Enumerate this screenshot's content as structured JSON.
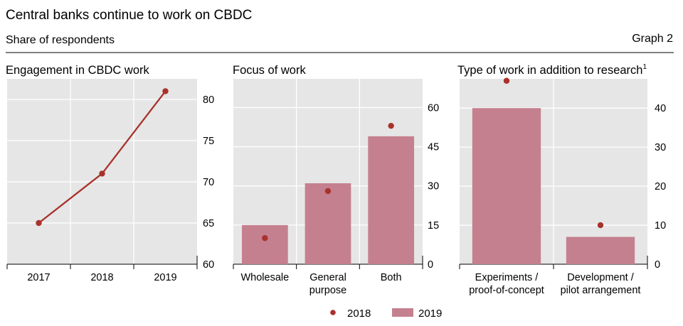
{
  "figure": {
    "title": "Central banks continue to work on CBDC",
    "subtitle": "Share of respondents",
    "graph_label": "Graph 2",
    "colors": {
      "panel_bg": "#e6e6e6",
      "grid": "#ffffff",
      "series_2018": "#a8322c",
      "series_2019": "#c5808f"
    }
  },
  "legend": [
    {
      "name": "2018",
      "kind": "dot"
    },
    {
      "name": "2019",
      "kind": "bar"
    }
  ],
  "chart_data": [
    {
      "type": "line",
      "title": "Engagement in CBDC work",
      "x": [
        "2017",
        "2018",
        "2019"
      ],
      "series": [
        {
          "values": [
            65,
            71,
            81
          ]
        }
      ],
      "ylim": [
        60,
        82.5
      ],
      "yticks": [
        60,
        65,
        70,
        75,
        80
      ],
      "grid": true
    },
    {
      "type": "bar",
      "title": "Focus of work",
      "categories": [
        "Wholesale",
        "General\npurpose",
        "Both"
      ],
      "series": [
        {
          "name": "2018",
          "kind": "dot",
          "values": [
            10,
            28,
            53
          ]
        },
        {
          "name": "2019",
          "kind": "bar",
          "values": [
            15,
            31,
            49
          ]
        }
      ],
      "ylim": [
        0,
        71
      ],
      "yticks": [
        0,
        15,
        30,
        45,
        60
      ],
      "grid": true
    },
    {
      "type": "bar",
      "title": "Type of work in addition to research",
      "title_footnote": "1",
      "categories": [
        "Experiments /\nproof-of-concept",
        "Development /\npilot arrangement"
      ],
      "series": [
        {
          "name": "2018",
          "kind": "dot",
          "values": [
            47,
            10
          ]
        },
        {
          "name": "2019",
          "kind": "bar",
          "values": [
            40,
            7
          ]
        }
      ],
      "ylim": [
        0,
        47.5
      ],
      "yticks": [
        0,
        10,
        20,
        30,
        40
      ],
      "grid": true
    }
  ]
}
